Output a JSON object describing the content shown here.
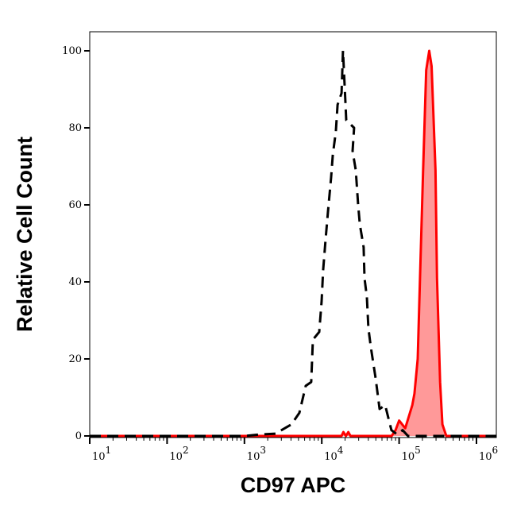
{
  "chart_data": {
    "type": "area",
    "xlabel": "CD97 APC",
    "ylabel": "Relative Cell Count",
    "xscale": "log",
    "xlim": [
      10,
      1800000
    ],
    "ylim": [
      0,
      100
    ],
    "xticks": [
      {
        "base": "10",
        "exp": "1",
        "value": 10
      },
      {
        "base": "10",
        "exp": "2",
        "value": 100
      },
      {
        "base": "10",
        "exp": "3",
        "value": 1000
      },
      {
        "base": "10",
        "exp": "4",
        "value": 10000
      },
      {
        "base": "10",
        "exp": "5",
        "value": 100000
      },
      {
        "base": "10",
        "exp": "6",
        "value": 1000000
      }
    ],
    "yticks": [
      "0",
      "20",
      "40",
      "60",
      "80",
      "100"
    ],
    "grid": false,
    "series": [
      {
        "style": "dashed",
        "color": "#000000",
        "filled": false,
        "points": [
          [
            10,
            0
          ],
          [
            1000,
            0
          ],
          [
            1610,
            0.4
          ],
          [
            2520,
            0.6
          ],
          [
            4050,
            3
          ],
          [
            5140,
            6
          ],
          [
            6210,
            13
          ],
          [
            7310,
            14
          ],
          [
            7680,
            25
          ],
          [
            9270,
            27
          ],
          [
            9950,
            35
          ],
          [
            10400,
            43
          ],
          [
            11200,
            51
          ],
          [
            12000,
            58
          ],
          [
            13200,
            67
          ],
          [
            13900,
            73
          ],
          [
            15200,
            79
          ],
          [
            16000,
            86
          ],
          [
            18000,
            89
          ],
          [
            18800,
            100
          ],
          [
            20200,
            87
          ],
          [
            20700,
            82
          ],
          [
            26200,
            80
          ],
          [
            25000,
            74
          ],
          [
            27500,
            69
          ],
          [
            29500,
            60
          ],
          [
            31000,
            55
          ],
          [
            34800,
            49
          ],
          [
            35700,
            41
          ],
          [
            38300,
            36
          ],
          [
            40100,
            28
          ],
          [
            43100,
            23
          ],
          [
            49700,
            15
          ],
          [
            55900,
            7
          ],
          [
            65900,
            8
          ],
          [
            79600,
            1.5
          ],
          [
            94000,
            0.4
          ],
          [
            111000,
            1.5
          ],
          [
            130000,
            0
          ],
          [
            1800000,
            0
          ]
        ]
      },
      {
        "style": "solid",
        "color": "#ff0000",
        "fill": "#ff9999",
        "filled": true,
        "points": [
          [
            10,
            0
          ],
          [
            18000,
            0
          ],
          [
            19000,
            1
          ],
          [
            20500,
            0
          ],
          [
            22000,
            1
          ],
          [
            23500,
            0
          ],
          [
            80000,
            0
          ],
          [
            90000,
            1.5
          ],
          [
            100000,
            4
          ],
          [
            120000,
            2
          ],
          [
            148000,
            8
          ],
          [
            158000,
            11
          ],
          [
            174000,
            20
          ],
          [
            186000,
            41
          ],
          [
            204000,
            69
          ],
          [
            224000,
            95
          ],
          [
            245000,
            100
          ],
          [
            263000,
            96
          ],
          [
            295000,
            69
          ],
          [
            309000,
            41
          ],
          [
            339000,
            14
          ],
          [
            363000,
            3
          ],
          [
            407000,
            0
          ],
          [
            1800000,
            0
          ]
        ]
      }
    ]
  }
}
